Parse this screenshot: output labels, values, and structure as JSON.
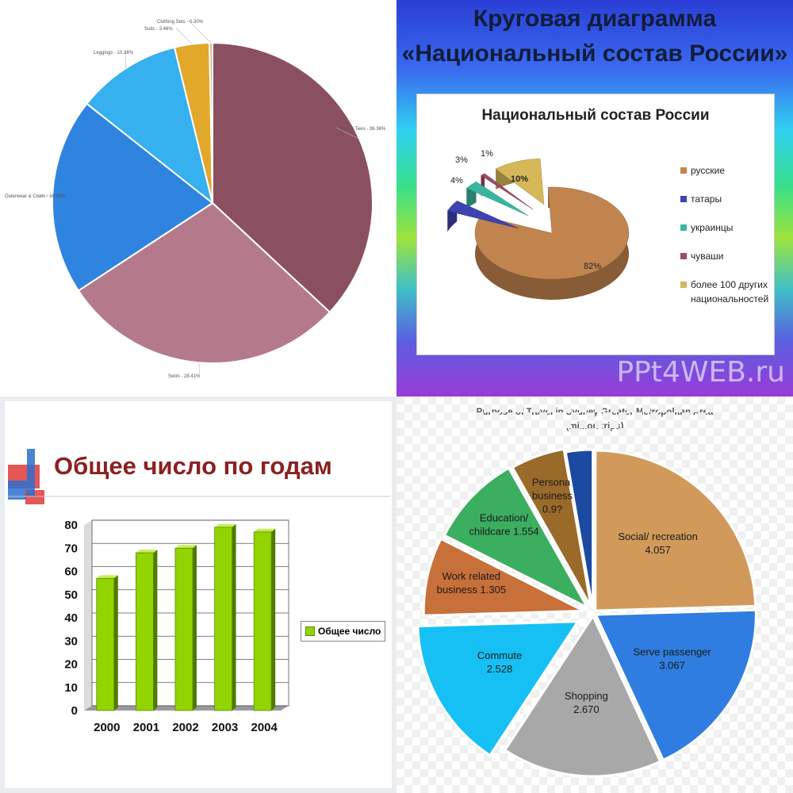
{
  "chart_data": [
    {
      "type": "pie",
      "title": "",
      "slices": [
        {
          "label": "Tops & Tees",
          "display": "Tops & Tees - 36.36%",
          "value": 36.36,
          "color": "#8b5060"
        },
        {
          "label": "Swim",
          "display": "Swim - 28.41%",
          "value": 28.41,
          "color": "#b47a8c"
        },
        {
          "label": "Outerwear & Coats",
          "display": "Outerwear & Coats - 19.55%",
          "value": 19.55,
          "color": "#2f84e0"
        },
        {
          "label": "Leggings",
          "display": "Leggings - 10.38%",
          "value": 10.38,
          "color": "#36b0ee"
        },
        {
          "label": "Suits",
          "display": "Suits - 3.46%",
          "value": 3.46,
          "color": "#e2a82a"
        },
        {
          "label": "Clothing Sets",
          "display": "Clothing Sets - 0.30%",
          "value": 0.3,
          "color": "#c8b090"
        }
      ]
    },
    {
      "type": "pie",
      "title": "Национальный состав России",
      "heading": "Круговая диаграмма «Национальный состав России»",
      "watermark": "PPt4WEB.ru",
      "slices": [
        {
          "label": "русские",
          "value": 82,
          "display": "82%",
          "color": "#c2844e"
        },
        {
          "label": "татары",
          "value": 4,
          "display": "4%",
          "color": "#3d43b0"
        },
        {
          "label": "украинцы",
          "value": 3,
          "display": "3%",
          "color": "#3ab6a0"
        },
        {
          "label": "чуваши",
          "value": 1,
          "display": "1%",
          "color": "#a04868"
        },
        {
          "label": "более 100 других национальностей",
          "value": 10,
          "display": "10%",
          "color": "#d6b85a"
        }
      ]
    },
    {
      "type": "bar",
      "title": "Общее число по годам",
      "categories": [
        "2000",
        "2001",
        "2002",
        "2003",
        "2004"
      ],
      "series": [
        {
          "name": "Общее число",
          "values": [
            57,
            68,
            70,
            79,
            77
          ]
        }
      ],
      "ylim": [
        0,
        80
      ],
      "yticks": [
        "0",
        "10",
        "20",
        "30",
        "40",
        "50",
        "60",
        "70",
        "80"
      ],
      "color": "#92d400"
    },
    {
      "type": "pie",
      "title": "Purpose of Travel in Sydney Greater Metropolitan Area",
      "subtitle": "(million trips)",
      "slices": [
        {
          "label": "Social/ recreation",
          "value": 4.057,
          "display": "4.057",
          "color": "#d29a5a"
        },
        {
          "label": "Serve passenger",
          "value": 3.067,
          "display": "3.067",
          "color": "#2f7de0"
        },
        {
          "label": "Shopping",
          "value": 2.67,
          "display": "2.670",
          "color": "#a8a8a8"
        },
        {
          "label": "Commute",
          "value": 2.528,
          "display": "2.528",
          "color": "#16c0f4"
        },
        {
          "label": "Work related business",
          "value": 1.305,
          "display": "1.305",
          "color": "#c8703a"
        },
        {
          "label": "Education/ childcare",
          "value": 1.554,
          "display": "1.554",
          "color": "#3cae60"
        },
        {
          "label": "Personal business",
          "value": 0.9,
          "display": "0.9?",
          "color": "#9a6a2a"
        },
        {
          "label": "",
          "value": 0.45,
          "display": "",
          "color": "#1c4aa0"
        }
      ]
    }
  ]
}
